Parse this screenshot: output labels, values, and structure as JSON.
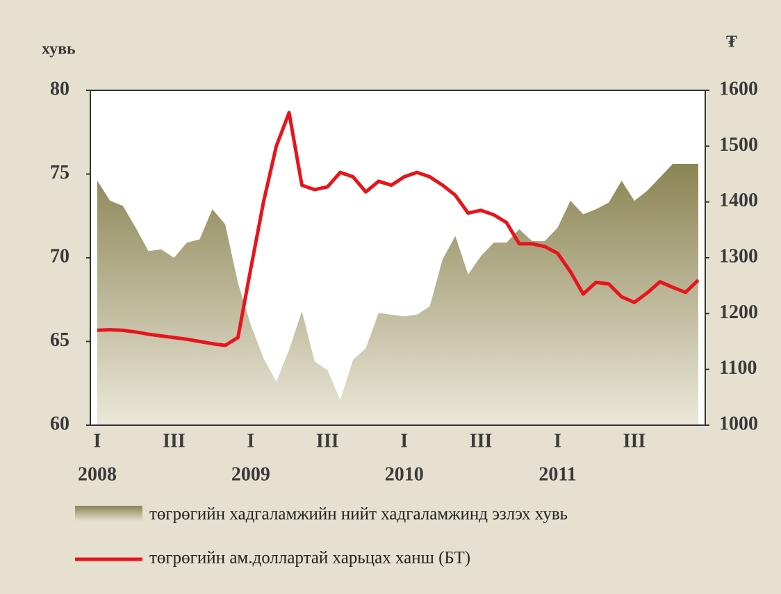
{
  "chart_data": {
    "type": "area-line",
    "y_label": "хувь",
    "y2_label": "₮",
    "categories": [
      "I",
      null,
      null,
      null,
      null,
      null,
      "III",
      null,
      null,
      null,
      null,
      null,
      "I",
      null,
      null,
      null,
      null,
      null,
      "III",
      null,
      null,
      null,
      null,
      null,
      "I",
      null,
      null,
      null,
      null,
      null,
      "III",
      null,
      null,
      null,
      null,
      null,
      "I",
      null,
      null,
      null,
      null,
      null,
      "III",
      null,
      null,
      null,
      null,
      null
    ],
    "years": [
      "2008",
      null,
      null,
      null,
      null,
      null,
      null,
      null,
      null,
      null,
      null,
      null,
      "2009",
      null,
      null,
      null,
      null,
      null,
      null,
      null,
      null,
      null,
      null,
      null,
      "2010",
      null,
      null,
      null,
      null,
      null,
      null,
      null,
      null,
      null,
      null,
      null,
      "2011",
      null,
      null,
      null,
      null,
      null,
      null,
      null,
      null,
      null,
      null,
      null
    ],
    "series": [
      {
        "name": "төгрөгийн хадгаламжийн нийт хадгаламжинд эзлэх хувь",
        "kind": "area",
        "color": "#8f8a5c",
        "values": [
          74.6,
          73.4,
          73.1,
          71.8,
          70.4,
          70.5,
          70.0,
          70.9,
          71.1,
          72.9,
          72.0,
          68.5,
          66.0,
          64.0,
          62.6,
          64.5,
          66.8,
          63.8,
          63.3,
          61.5,
          63.9,
          64.6,
          66.7,
          66.6,
          66.5,
          66.6,
          67.1,
          69.9,
          71.3,
          69.0,
          70.1,
          70.9,
          70.9,
          71.7,
          71.0,
          71.0,
          71.8,
          73.4,
          72.6,
          72.9,
          73.3,
          74.6,
          73.4,
          74.0,
          74.8,
          75.6,
          75.6,
          75.6
        ]
      },
      {
        "name": "төгрөгийн ам.доллартай харьцах ханш (БТ)",
        "kind": "line",
        "axis": "y2",
        "color": "#e8141c",
        "values": [
          1170,
          1171,
          1170,
          1167,
          1163,
          1160,
          1157,
          1154,
          1150,
          1146,
          1143,
          1157,
          1280,
          1400,
          1500,
          1560,
          1430,
          1422,
          1427,
          1453,
          1445,
          1418,
          1437,
          1430,
          1445,
          1453,
          1445,
          1430,
          1412,
          1380,
          1385,
          1377,
          1363,
          1325,
          1325,
          1320,
          1308,
          1275,
          1235,
          1256,
          1253,
          1230,
          1220,
          1237,
          1257,
          1247,
          1238,
          1260
        ]
      }
    ],
    "ylim": [
      60,
      80
    ],
    "yticks": [
      60,
      65,
      70,
      75,
      80
    ],
    "y2lim": [
      1000,
      1600
    ],
    "y2ticks": [
      1000,
      1100,
      1200,
      1300,
      1400,
      1500,
      1600
    ]
  }
}
